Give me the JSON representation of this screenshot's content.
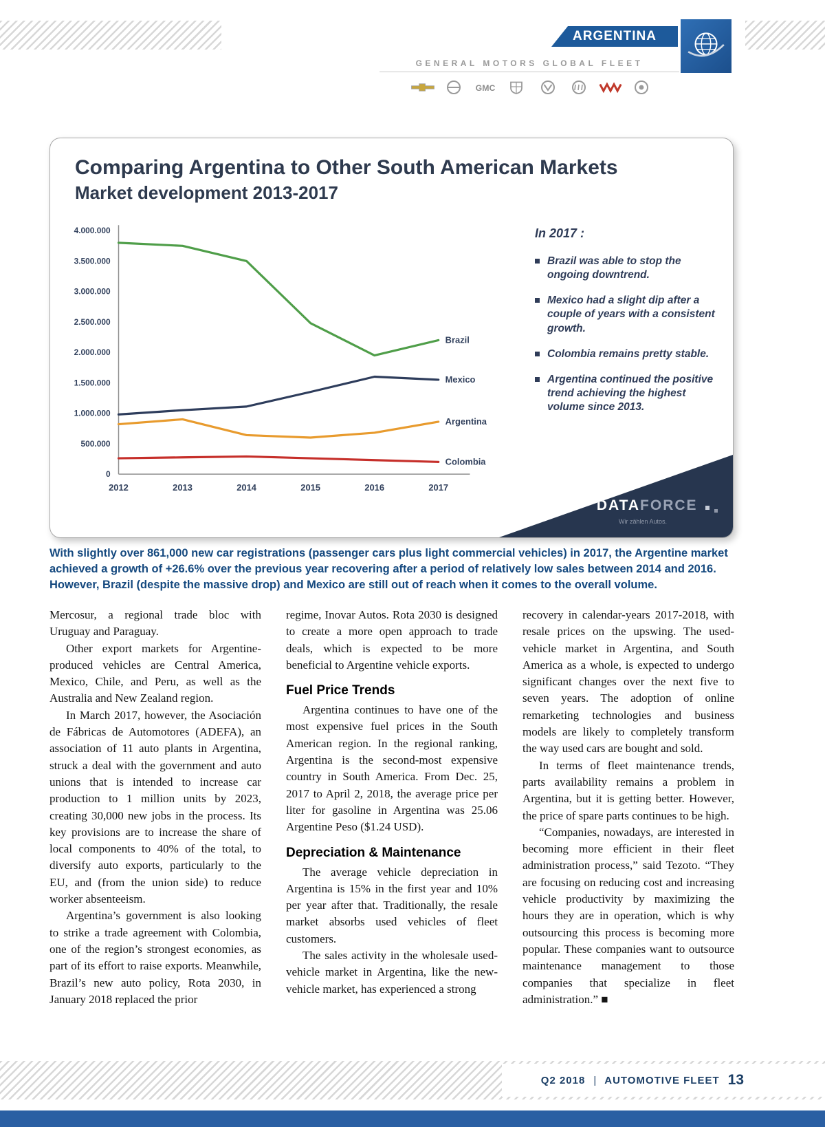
{
  "header": {
    "region_label": "ARGENTINA",
    "program_title": "GENERAL MOTORS GLOBAL FLEET",
    "brand_logos": [
      "chevrolet",
      "opel",
      "gmc",
      "cadillac",
      "vauxhall",
      "buick",
      "wuling",
      "holden"
    ]
  },
  "chart_card": {
    "title": "Comparing Argentina to Other South American Markets",
    "subtitle": "Market development 2013-2017",
    "notes_title": "In 2017 :",
    "notes": [
      "Brazil was able to stop the ongoing downtrend.",
      "Mexico had a slight dip after a couple of years with a consistent growth.",
      "Colombia remains pretty stable.",
      "Argentina continued the positive trend achieving the highest volume since 2013."
    ],
    "logo": {
      "part1": "DATA",
      "part2": "FORCE",
      "tagline": "Wir zählen Autos."
    }
  },
  "chart_data": {
    "type": "line",
    "title": "Comparing Argentina to Other South American Markets — Market development 2013-2017",
    "x": [
      "2012",
      "2013",
      "2014",
      "2015",
      "2016",
      "2017"
    ],
    "series": [
      {
        "name": "Brazil",
        "color": "#4f9e49",
        "values": [
          3800000,
          3750000,
          3500000,
          2480000,
          1950000,
          2200000
        ]
      },
      {
        "name": "Mexico",
        "color": "#2e3d5c",
        "values": [
          980000,
          1050000,
          1110000,
          1350000,
          1600000,
          1550000
        ]
      },
      {
        "name": "Argentina",
        "color": "#e89b2e",
        "values": [
          820000,
          900000,
          640000,
          600000,
          680000,
          860000
        ]
      },
      {
        "name": "Colombia",
        "color": "#c62f2a",
        "values": [
          260000,
          275000,
          290000,
          260000,
          230000,
          200000
        ]
      }
    ],
    "ylim": [
      0,
      4000000
    ],
    "ytick_step": 500000,
    "ytick_labels": [
      "0",
      "500.000",
      "1.000.000",
      "1.500.000",
      "2.000.000",
      "2.500.000",
      "3.000.000",
      "3.500.000",
      "4.000.000"
    ],
    "grid": false,
    "legend_position": "line-end-labels"
  },
  "caption": "With slightly over 861,000 new car registrations (passenger cars plus light commercial vehicles) in 2017, the Argentine market achieved a growth of +26.6% over the previous year recovering after a period of relatively low sales between 2014 and 2016. However, Brazil (despite the massive drop) and Mexico are still out of reach when it comes to the overall volume.",
  "article": {
    "columns": [
      {
        "blocks": [
          {
            "type": "p",
            "indent": false,
            "text": "Mercosur, a regional trade bloc with Uruguay and Paraguay."
          },
          {
            "type": "p",
            "indent": true,
            "text": "Other export markets for Argentine-produced vehicles are Central America, Mexico, Chile, and Peru, as well as the Australia and New Zealand region."
          },
          {
            "type": "p",
            "indent": true,
            "text": "In March 2017, however, the Asociación de Fábricas de Automotores (ADEFA), an association of 11 auto plants in Argentina, struck a deal with the government and auto unions that is intended to increase car production to 1 million units by 2023, creating 30,000 new jobs in the process. Its key provisions are to increase the share of local components to 40% of the total, to diversify auto exports, particularly to the EU, and (from the union side) to reduce worker absenteeism."
          },
          {
            "type": "p",
            "indent": true,
            "text": "Argentina’s government is also looking to strike a trade agreement with Colombia, one of the region’s strongest economies, as part of its effort to raise exports. Meanwhile, Brazil’s new auto policy, Rota 2030, in January 2018 replaced the prior"
          }
        ]
      },
      {
        "blocks": [
          {
            "type": "p",
            "indent": false,
            "text": "regime, Inovar Autos.  Rota 2030 is designed to create a more open approach to trade deals, which is expected to be more beneficial to Argentine vehicle exports."
          },
          {
            "type": "h",
            "text": "Fuel Price Trends"
          },
          {
            "type": "p",
            "indent": true,
            "text": "Argentina continues to have one of the most expensive fuel prices in the South American region. In the regional ranking, Argentina is the second-most expensive country in South America. From Dec. 25, 2017 to April 2, 2018, the average price per liter for gasoline in Argentina was 25.06 Argentine Peso ($1.24 USD)."
          },
          {
            "type": "h",
            "text": "Depreciation & Maintenance"
          },
          {
            "type": "p",
            "indent": true,
            "text": "The average vehicle depreciation in Argentina is 15% in the first year and 10% per year after that. Traditionally, the resale market absorbs used vehicles of fleet customers."
          },
          {
            "type": "p",
            "indent": true,
            "text": "The sales activity in the wholesale used-vehicle market in Argentina, like the new-vehicle market, has experienced a strong"
          }
        ]
      },
      {
        "blocks": [
          {
            "type": "p",
            "indent": false,
            "text": "recovery in calendar-years 2017-2018, with resale prices on the upswing. The used-vehicle market in Argentina, and South America as a whole, is expected to undergo significant changes over the next five to seven years. The adoption of online remarketing technologies and business models are likely to completely transform the way used cars are bought and sold."
          },
          {
            "type": "p",
            "indent": true,
            "text": "In terms of fleet maintenance trends, parts availability remains a problem in Argentina, but it is getting better. However, the price of spare parts continues to be high."
          },
          {
            "type": "p",
            "indent": true,
            "text": "“Companies, nowadays, are interested in becoming more efficient in their fleet administration process,” said Tezoto. “They are focusing on reducing cost and increasing vehicle productivity by maximizing the hours they are in operation, which is why outsourcing this process is becoming more popular. These companies want to outsource maintenance management to those companies that specialize in fleet administration.” ■"
          }
        ]
      }
    ]
  },
  "footer": {
    "issue": "Q2 2018",
    "separator": "|",
    "publication": "AUTOMOTIVE FLEET",
    "page_number": "13"
  },
  "colors": {
    "banner_blue": "#1d5a9b",
    "navy": "#2e3a4e",
    "caption_blue": "#15497f",
    "bottom_bar_blue": "#2a5fa3"
  }
}
